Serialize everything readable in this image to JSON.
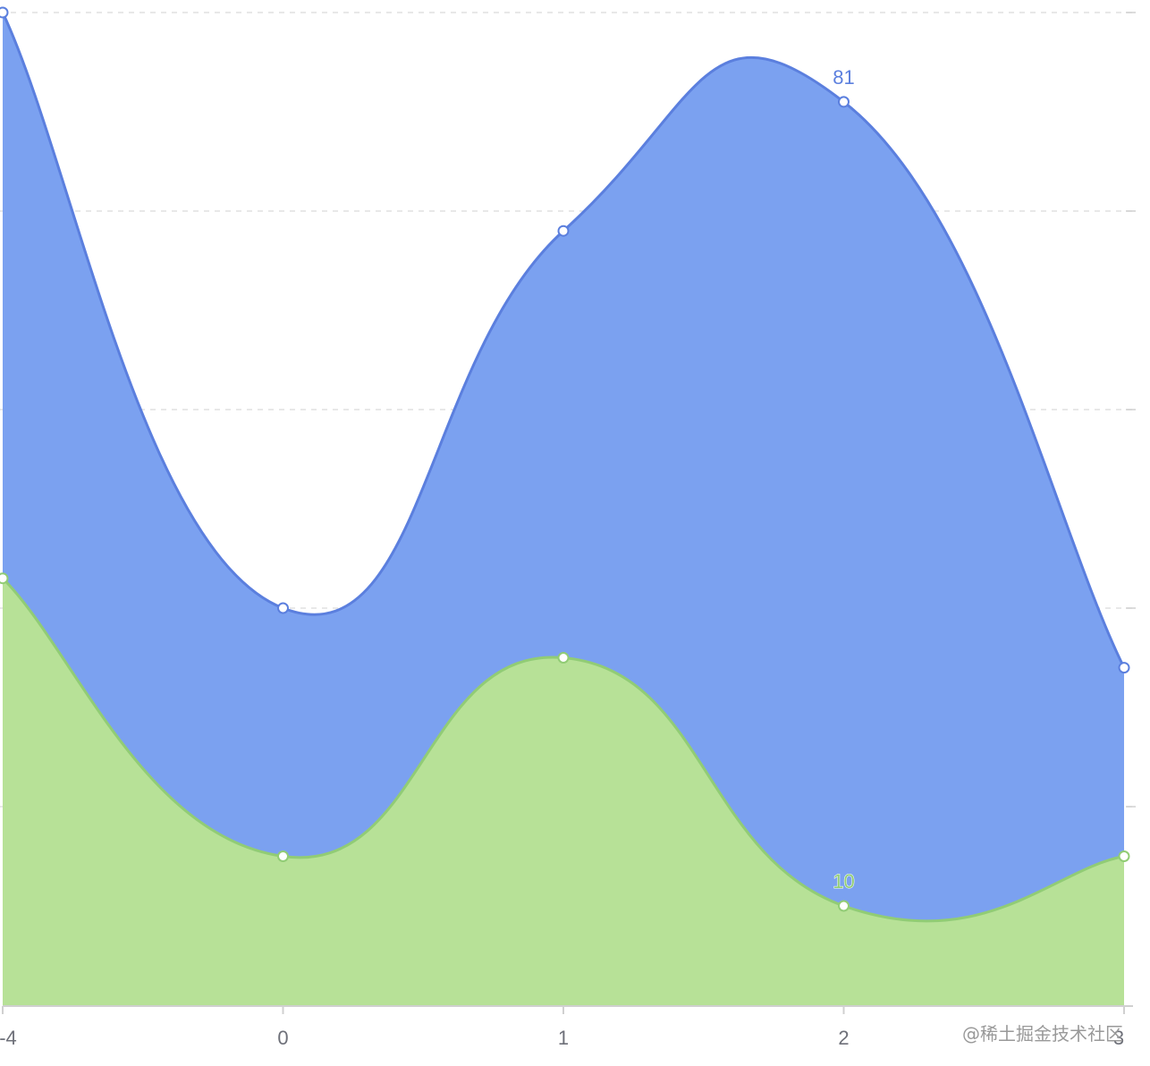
{
  "chart_data": {
    "type": "area",
    "stacked": true,
    "smooth": true,
    "categories": [
      "-4",
      "0",
      "1",
      "2",
      "3"
    ],
    "series": [
      {
        "values": [
          43,
          15,
          35,
          10,
          15
        ],
        "color": "#b7e197",
        "line_color": "#91cc75",
        "label_index": 3
      },
      {
        "values": [
          57,
          25,
          43,
          81,
          19
        ],
        "color": "#7ba1f0",
        "line_color": "#5b7fde",
        "label_index": 3
      }
    ],
    "ylim": [
      0,
      100
    ],
    "y_gridlines": [
      20,
      40,
      60,
      80,
      100
    ],
    "grid": "dashed",
    "legend": "none"
  },
  "watermark": "@稀土掘金技术社区"
}
